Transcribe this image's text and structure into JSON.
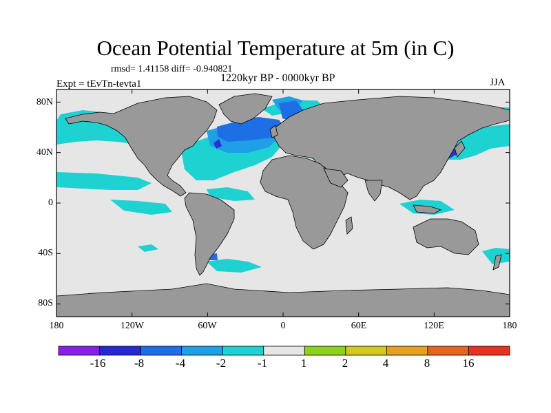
{
  "title": "Ocean Potential Temperature at 5m (in C)",
  "stats_line": "rmsd= 1.41158  diff= -0.940821",
  "subtitle": "1220kyr BP - 0000kyr BP",
  "expt_label": "Expt = tEvTn-tevta1",
  "season": "JJA",
  "map": {
    "projection": "cylindrical-equidistant",
    "lon_range": [
      -180,
      180
    ],
    "lat_range": [
      -90,
      90
    ],
    "x_ticks": [
      {
        "value": -180,
        "label": "180"
      },
      {
        "value": -120,
        "label": "120W"
      },
      {
        "value": -60,
        "label": "60W"
      },
      {
        "value": 0,
        "label": "0"
      },
      {
        "value": 60,
        "label": "60E"
      },
      {
        "value": 120,
        "label": "120E"
      },
      {
        "value": 180,
        "label": "180"
      }
    ],
    "y_ticks": [
      {
        "value": 80,
        "label": "80N"
      },
      {
        "value": 40,
        "label": "40N"
      },
      {
        "value": 0,
        "label": "0"
      },
      {
        "value": -40,
        "label": "40S"
      },
      {
        "value": -80,
        "label": "80S"
      }
    ],
    "colors": {
      "ocean_neutral": "#e6e6e6",
      "land": "#999999",
      "coast": "#000000",
      "cyan": "#1ed2d2",
      "light_blue": "#1fa0e6",
      "blue": "#1e6ee6",
      "deep_blue": "#2832d2"
    }
  },
  "colorbar": {
    "colors": [
      "#8a1ee6",
      "#2828d2",
      "#1e6ee6",
      "#1ea0e6",
      "#1ed2d2",
      "#e6e6e6",
      "#8cd21e",
      "#d2c81e",
      "#e6a01e",
      "#e6641e",
      "#e6321e"
    ],
    "tick_labels": [
      "-16",
      "-8",
      "-4",
      "-2",
      "-1",
      "1",
      "2",
      "4",
      "8",
      "16"
    ]
  }
}
